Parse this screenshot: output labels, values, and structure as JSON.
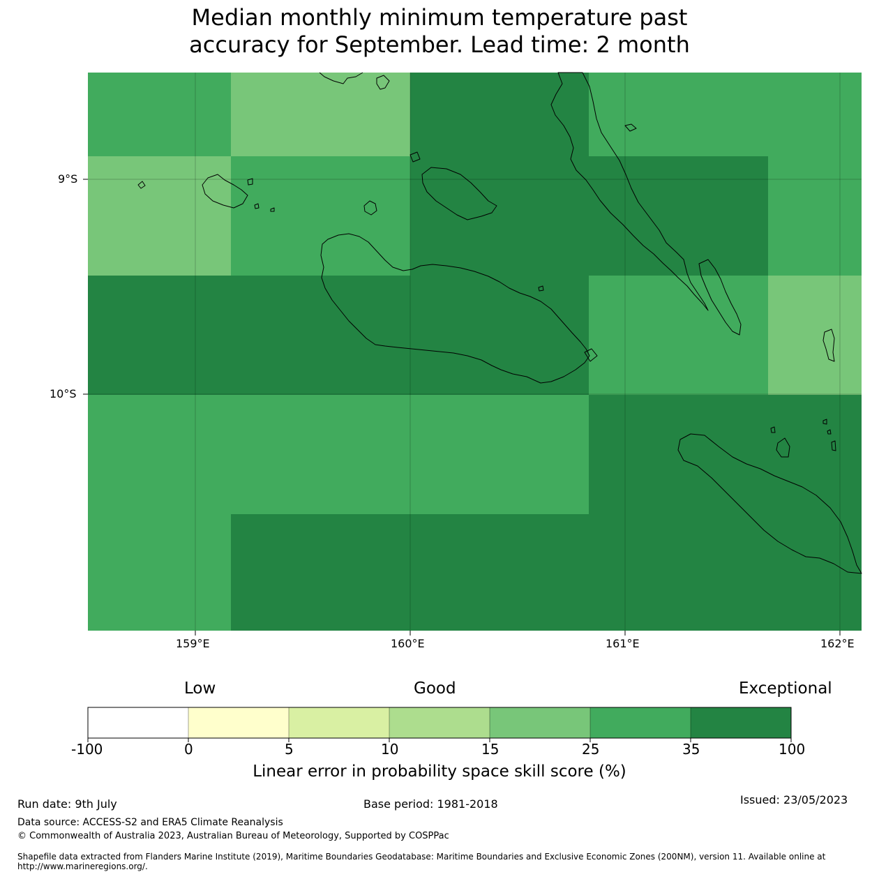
{
  "title": {
    "line1": "Median monthly minimum temperature past",
    "line2": "accuracy for September. Lead time: 2 month"
  },
  "map": {
    "lat_labels": [
      "9°S",
      "10°S"
    ],
    "lon_labels": [
      "159°E",
      "160°E",
      "161°E",
      "162°E"
    ]
  },
  "legend": {
    "categories": [
      "Low",
      "Good",
      "Exceptional"
    ],
    "ticks": [
      "-100",
      "0",
      "5",
      "10",
      "15",
      "25",
      "35",
      "100"
    ],
    "bin_colors": [
      "#ffffff",
      "#ffffcc",
      "#d9f0a3",
      "#addd8e",
      "#78c679",
      "#41ab5d",
      "#238443"
    ],
    "label": "Linear error in probability space skill score (%)"
  },
  "footer": {
    "run_date": "Run date: 9th July",
    "base_period": "Base period: 1981-2018",
    "issued": "Issued: 23/05/2023",
    "data_source": "Data source: ACCESS-S2 and ERA5 Climate Reanalysis",
    "copyright": "© Commonwealth of Australia 2023, Australian Bureau of Meteorology, Supported by COSPPac",
    "shapefile": "Shapefile data extracted from Flanders Marine Institute (2019), Maritime Boundaries Geodatabase: Maritime Boundaries and Exclusive Economic Zones (200NM), version 11. Available online at http://www.marineregions.org/."
  }
}
